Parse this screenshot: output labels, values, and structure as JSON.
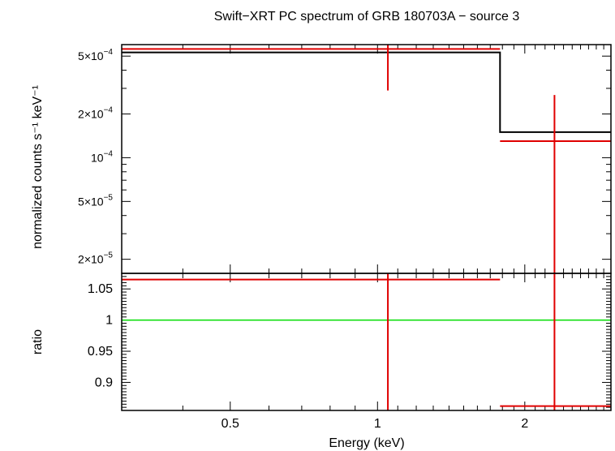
{
  "chart_data": {
    "type": "line",
    "title": "Swift−XRT PC spectrum of GRB 180703A − source 3",
    "xlabel": "Energy (keV)",
    "xscale": "log",
    "xlim": [
      0.3,
      3.0
    ],
    "x_tick_labels": [
      "0.5",
      "1",
      "2"
    ],
    "panels": [
      {
        "name": "spectrum",
        "ylabel": "normalized counts s⁻¹ keV⁻¹",
        "yscale": "log",
        "ylim": [
          1.6e-05,
          0.0006
        ],
        "y_ticks": [
          {
            "value": 0.0005,
            "mant": "5×10",
            "exp": "−4"
          },
          {
            "value": 0.0002,
            "mant": "2×10",
            "exp": "−4"
          },
          {
            "value": 0.0001,
            "mant": "10",
            "exp": "−4"
          },
          {
            "value": 5e-05,
            "mant": "5×10",
            "exp": "−5"
          },
          {
            "value": 2e-05,
            "mant": "2×10",
            "exp": "−5"
          }
        ],
        "data_points": [
          {
            "x": 1.05,
            "xlo": 0.3,
            "xhi": 1.78,
            "y": 0.00056,
            "ylo": 0.00029,
            "yhi": 0.0006
          },
          {
            "x": 2.3,
            "xlo": 1.78,
            "xhi": 3.0,
            "y": 0.00013,
            "ylo": 1.6e-05,
            "yhi": 0.00027
          }
        ],
        "model_steps": [
          {
            "xlo": 0.3,
            "xhi": 1.78,
            "y": 0.00053
          },
          {
            "xlo": 1.78,
            "xhi": 3.0,
            "y": 0.00015
          }
        ]
      },
      {
        "name": "ratio",
        "ylabel": "ratio",
        "yscale": "linear",
        "ylim": [
          0.855,
          1.075
        ],
        "y_ticks": [
          {
            "value": 1.05,
            "label": "1.05"
          },
          {
            "value": 1.0,
            "label": "1"
          },
          {
            "value": 0.95,
            "label": "0.95"
          },
          {
            "value": 0.9,
            "label": "0.9"
          }
        ],
        "reference_line": 1.0,
        "data_points": [
          {
            "x": 1.05,
            "xlo": 0.3,
            "xhi": 1.78,
            "y": 1.065,
            "ylo": 0.855,
            "yhi": 1.075
          },
          {
            "x": 2.3,
            "xlo": 1.78,
            "xhi": 3.0,
            "y": 0.862,
            "ylo": 0.855,
            "yhi": 1.075
          }
        ]
      }
    ],
    "colors": {
      "data": "#e00000",
      "model": "#000000",
      "reference": "#00dd00",
      "axes": "#000000"
    }
  }
}
